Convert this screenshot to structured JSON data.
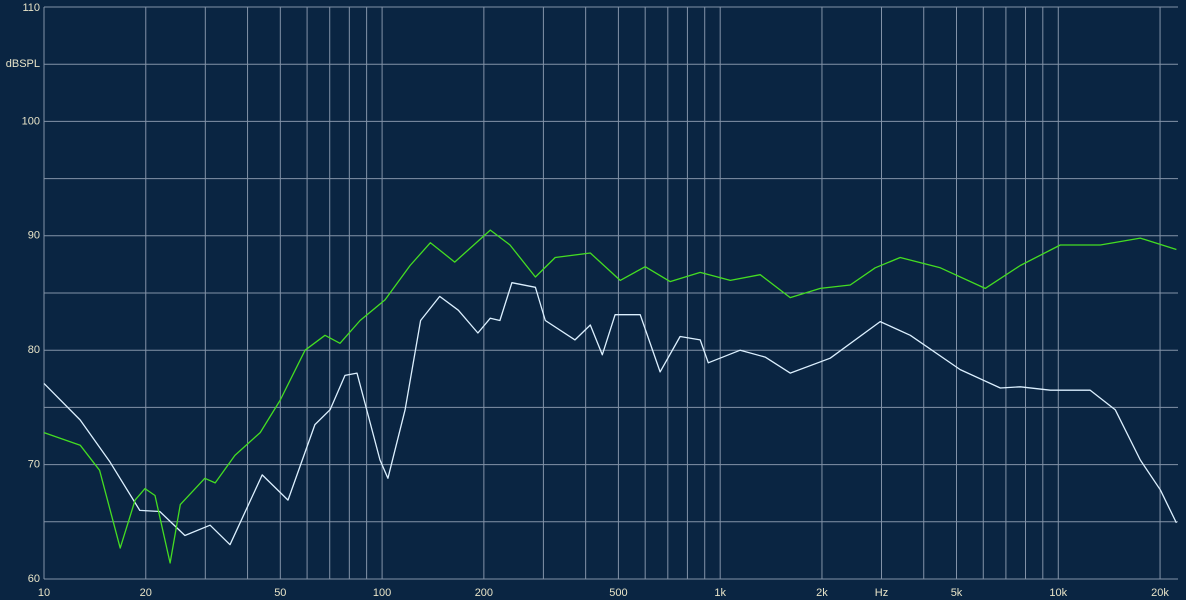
{
  "chart_data": {
    "type": "line",
    "x_scale": "log",
    "xlim": [
      10,
      22600
    ],
    "ylim": [
      60,
      110
    ],
    "xticks": [
      10,
      20,
      50,
      100,
      200,
      500,
      {
        "value": 1000,
        "label": "1k"
      },
      {
        "value": 2000,
        "label": "2k"
      },
      {
        "value": 3000,
        "label": "Hz"
      },
      {
        "value": 5000,
        "label": "5k"
      },
      {
        "value": 10000,
        "label": "10k"
      },
      {
        "value": 20000,
        "label": "20k"
      }
    ],
    "xgrid": [
      30,
      40,
      60,
      70,
      80,
      90,
      300,
      400,
      600,
      700,
      800,
      900,
      4000,
      6000,
      7000,
      8000,
      9000
    ],
    "yticks": [
      60,
      70,
      80,
      90,
      100,
      {
        "value": 105,
        "label": "dBSPL"
      },
      110
    ],
    "ygrid": [
      65,
      75,
      85,
      95
    ],
    "grid": true,
    "series": [
      {
        "color": "#dcf0ff",
        "x": [
          10,
          12.8,
          15.7,
          19.2,
          22,
          26.1,
          31,
          35.5,
          44.2,
          52.7,
          63.3,
          70.2,
          77.7,
          84.3,
          98.6,
          104,
          117,
          130,
          148,
          168,
          192,
          209,
          223,
          242,
          284,
          304,
          372,
          413,
          448,
          489,
          580,
          664,
          761,
          873,
          922,
          1146,
          1359,
          1611,
          2116,
          2974,
          3649,
          5129,
          6737,
          7720,
          9470,
          12430,
          14740,
          17480,
          20040,
          22350
        ],
        "values": [
          77.1,
          73.9,
          70.2,
          66,
          65.9,
          63.8,
          64.7,
          63,
          69.1,
          66.9,
          73.5,
          74.8,
          77.8,
          78,
          70.4,
          68.8,
          74.8,
          82.6,
          84.7,
          83.5,
          81.5,
          82.8,
          82.6,
          85.9,
          85.5,
          82.6,
          80.9,
          82.2,
          79.6,
          83.1,
          83.1,
          78.1,
          81.2,
          80.9,
          78.9,
          80,
          79.4,
          78,
          79.3,
          82.5,
          81.3,
          78.3,
          76.7,
          76.8,
          76.5,
          76.5,
          74.8,
          70.4,
          67.8,
          64.9
        ]
      },
      {
        "color": "#44dd22",
        "x": [
          10,
          12.8,
          14.6,
          16.8,
          18.6,
          19.9,
          21.3,
          23.6,
          25.3,
          29.9,
          32.1,
          36.7,
          43.6,
          49.9,
          59.2,
          67.8,
          75.1,
          86.1,
          102,
          121,
          139,
          164,
          209,
          239,
          284,
          325,
          413,
          506,
          600,
          711,
          873,
          1071,
          1313,
          1611,
          1977,
          2424,
          2874,
          3408,
          4477,
          6081,
          7720,
          10140,
          13310,
          17480,
          22350
        ],
        "values": [
          72.8,
          71.7,
          69.5,
          62.7,
          66.9,
          67.9,
          67.3,
          61.4,
          66.5,
          68.8,
          68.4,
          70.8,
          72.8,
          75.6,
          80,
          81.3,
          80.6,
          82.6,
          84.4,
          87.4,
          89.4,
          87.7,
          90.5,
          89.2,
          86.4,
          88.1,
          88.5,
          86.1,
          87.3,
          86,
          86.8,
          86.1,
          86.6,
          84.6,
          85.4,
          85.7,
          87.2,
          88.1,
          87.2,
          85.4,
          87.4,
          89.2,
          89.2,
          89.8,
          88.8
        ]
      }
    ]
  }
}
